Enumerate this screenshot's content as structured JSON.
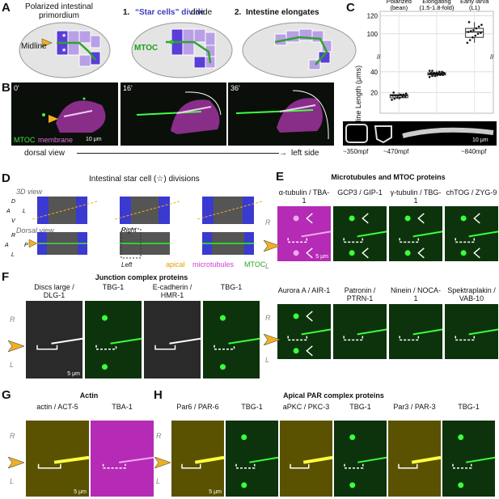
{
  "panels": {
    "A": {
      "label": "A",
      "titles": [
        "Polarized intestinal primordium",
        "“Star cells” divide",
        "Intestine elongates"
      ],
      "title_numbers": [
        "1.",
        "2."
      ],
      "midline": "Midline",
      "mtoc": "MTOC"
    },
    "B": {
      "label": "B",
      "times": [
        "0'",
        "16'",
        "36'"
      ],
      "legend_mtoc": "MTOC",
      "legend_membrane": "membrane",
      "scale": "10 μm",
      "dorsal_view": "dorsal view",
      "left_side": "left side"
    },
    "C": {
      "label": "C",
      "ylabel": "Midline Length (μms)",
      "thumbs": [
        "~350mpf",
        "~470mpf",
        "~840mpf"
      ],
      "thumb_scale": "10 μm"
    },
    "D": {
      "label": "D",
      "title": "Intestinal star cell (☆) divisions",
      "view3d": "3D view",
      "dorsal": "Dorsal view",
      "axes3d": [
        "D",
        "V",
        "A",
        "L"
      ],
      "axes2d": [
        "R",
        "A",
        "P",
        "L"
      ],
      "right": "Right",
      "left": "Left",
      "legend": [
        "apical",
        "microtubules",
        "MTOC"
      ]
    },
    "E": {
      "label": "E",
      "title": "Microtubules and MTOC proteins",
      "row1": [
        "α-tubulin / TBA-1",
        "GCP3 / GIP-1",
        "γ-tubulin / TBG-1",
        "chTOG / ZYG-9"
      ],
      "row2": [
        "Aurora A / AIR-1",
        "Patronin / PTRN-1",
        "Ninein / NOCA-1",
        "Spektraplakin / VAB-10"
      ],
      "side": [
        "R",
        "L"
      ],
      "scale": "5 μm"
    },
    "F": {
      "label": "F",
      "title": "Junction complex proteins",
      "cols": [
        "Discs large / DLG-1",
        "TBG-1",
        "E-cadherin / HMR-1",
        "TBG-1"
      ],
      "side": [
        "R",
        "L"
      ],
      "scale": "5 μm"
    },
    "G": {
      "label": "G",
      "title": "Actin",
      "cols": [
        "actin / ACT-5",
        "TBA-1"
      ],
      "side": [
        "R",
        "L"
      ],
      "scale": "5 μm"
    },
    "H": {
      "label": "H",
      "title": "Apical PAR complex proteins",
      "cols": [
        "Par6 / PAR-6",
        "TBG-1",
        "aPKC / PKC-3",
        "TBG-1",
        "Par3 / PAR-3",
        "TBG-1"
      ],
      "side": [
        "R",
        "L"
      ],
      "scale": "5 μm"
    }
  },
  "chart_data": {
    "type": "scatter",
    "title": "",
    "xlabel": "",
    "ylabel": "Midline Length (μms)",
    "categories": [
      "Polarized (bean)",
      "Elongating (1.5-1.8-fold)",
      "Early larva (L1)"
    ],
    "yticks": [
      20,
      40,
      100,
      120
    ],
    "y_axis_break": true,
    "boxes": [
      {
        "category": "Polarized (bean)",
        "q1": 15,
        "median": 17,
        "q3": 18,
        "min": 13,
        "max": 20
      },
      {
        "category": "Elongating (1.5-1.8-fold)",
        "q1": 37,
        "median": 38,
        "q3": 39,
        "min": 35,
        "max": 41
      },
      {
        "category": "Early larva (L1)",
        "q1": 96,
        "median": 102,
        "q3": 106,
        "min": 90,
        "max": 113
      }
    ],
    "points": [
      {
        "category": "Polarized (bean)",
        "values": [
          13,
          14,
          15,
          15,
          16,
          16,
          17,
          17,
          17,
          18,
          18,
          19,
          20
        ]
      },
      {
        "category": "Elongating (1.5-1.8-fold)",
        "values": [
          35,
          36,
          36,
          37,
          37,
          37,
          38,
          38,
          38,
          38,
          38,
          39,
          39,
          39,
          39,
          40,
          40,
          41,
          41
        ]
      },
      {
        "category": "Early larva (L1)",
        "values": [
          90,
          93,
          96,
          98,
          100,
          101,
          102,
          103,
          104,
          106,
          108,
          110,
          113
        ]
      }
    ]
  }
}
